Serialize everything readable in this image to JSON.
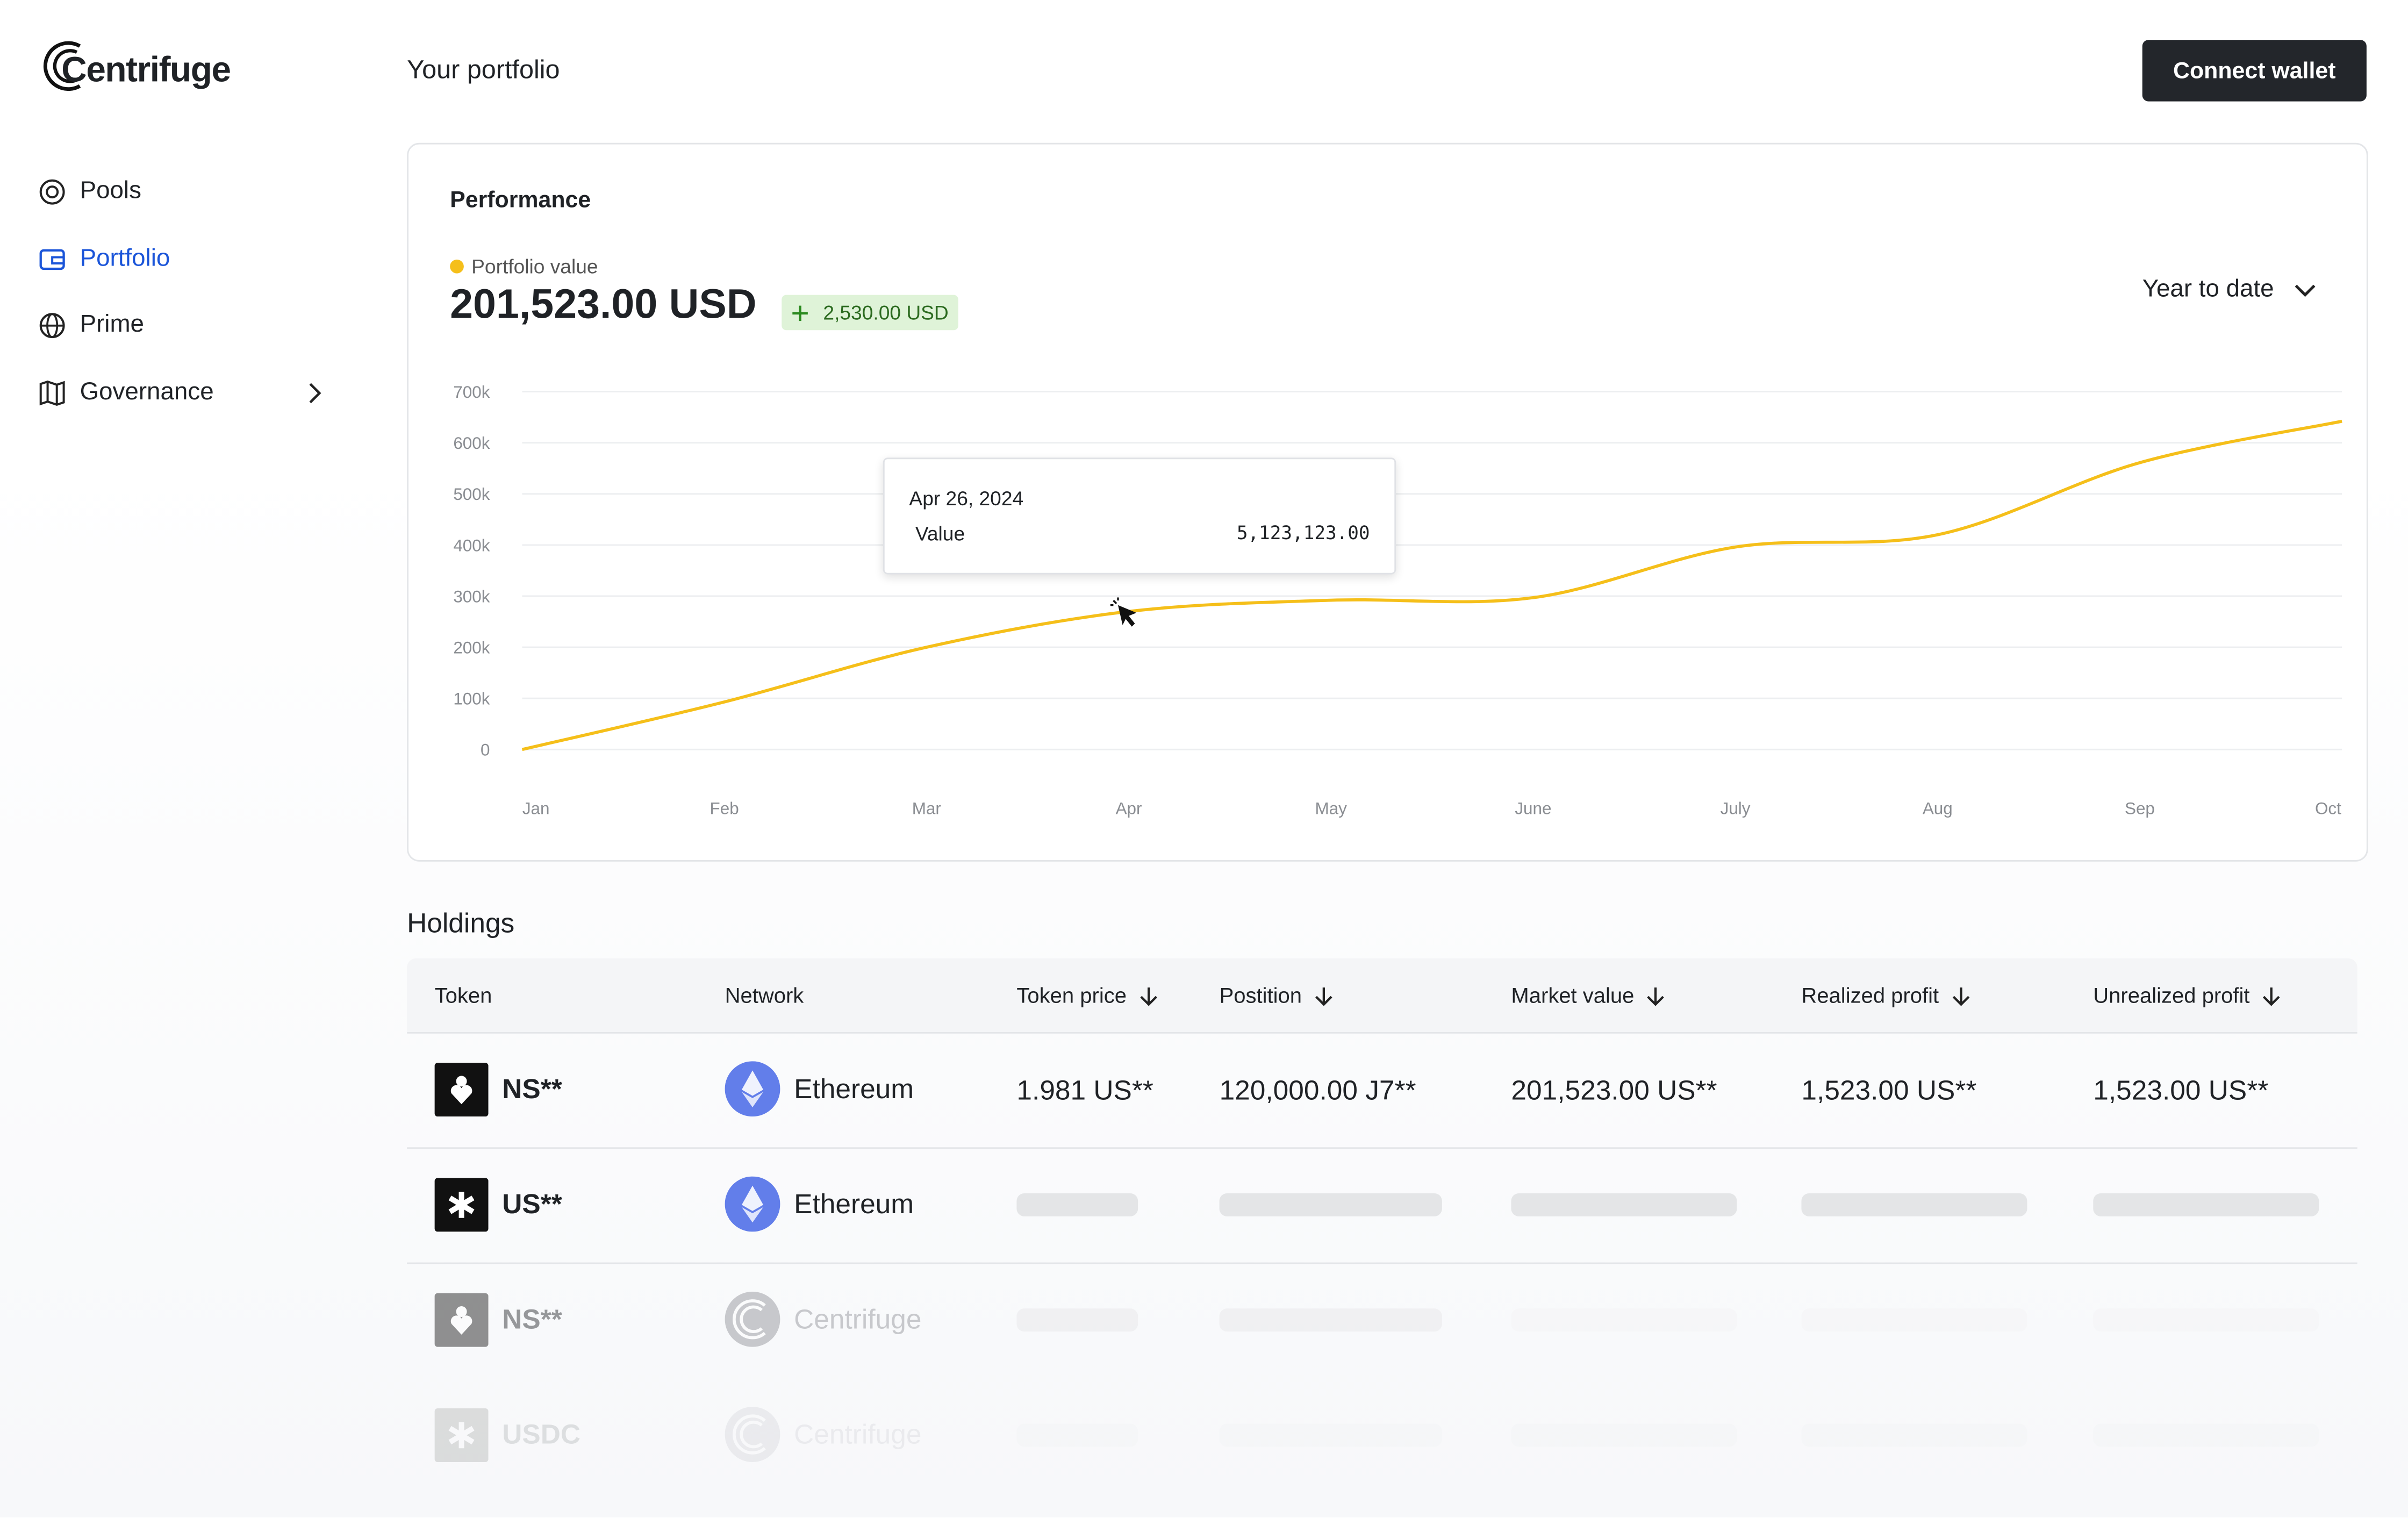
{
  "logo": "Centrifuge",
  "nav": [
    {
      "label": "Pools"
    },
    {
      "label": "Portfolio",
      "active": true
    },
    {
      "label": "Prime"
    },
    {
      "label": "Governance"
    }
  ],
  "header": {
    "title": "Your portfolio",
    "button": "Connect wallet"
  },
  "performance": {
    "title": "Performance",
    "value": "201,523.00 USD",
    "change": "2,530.00 USD",
    "period": "Year to date",
    "chart_data": {
      "type": "line",
      "x": [
        "Jan",
        "Feb",
        "Mar",
        "Apr",
        "May",
        "June",
        "July",
        "Aug",
        "Sep",
        "Oct"
      ],
      "series": [
        {
          "name": "Portfolio value",
          "color": "#f5bf1a",
          "values": [
            0,
            93000,
            200000,
            270000,
            292000,
            297000,
            396000,
            420000,
            561000,
            642000
          ]
        }
      ],
      "ylim": [
        0,
        700000
      ],
      "yticks": [
        0,
        {
          "value": 100000,
          "label": "100k"
        },
        {
          "value": 200000,
          "label": "200k"
        },
        {
          "value": 300000,
          "label": "300k"
        },
        {
          "value": 400000,
          "label": "400k"
        },
        {
          "value": 500000,
          "label": "500k"
        },
        {
          "value": 600000,
          "label": "600k"
        },
        {
          "value": 700000,
          "label": "700k"
        }
      ],
      "grid": true
    },
    "tooltip": {
      "date": "Apr 26, 2024",
      "label": "Value",
      "value": "5,123,123.00"
    }
  },
  "holdings": {
    "title": "Holdings",
    "columns": [
      "Token",
      "Network",
      "Token price",
      "Postition",
      "Market value",
      "Realized profit",
      "Unrealized profit"
    ],
    "rows": [
      {
        "token": "NS**",
        "network": "Ethereum",
        "cells": [
          "1.981 US**",
          "120,000.00 J7**",
          "201,523.00 US**",
          "1,523.00 US**",
          "1,523.00 US**"
        ]
      },
      {
        "token": "US**",
        "network": "Ethereum"
      },
      {
        "token": "NS**",
        "network": "Centrifuge"
      },
      {
        "token": "USDC",
        "network": "Centrifuge"
      }
    ]
  }
}
